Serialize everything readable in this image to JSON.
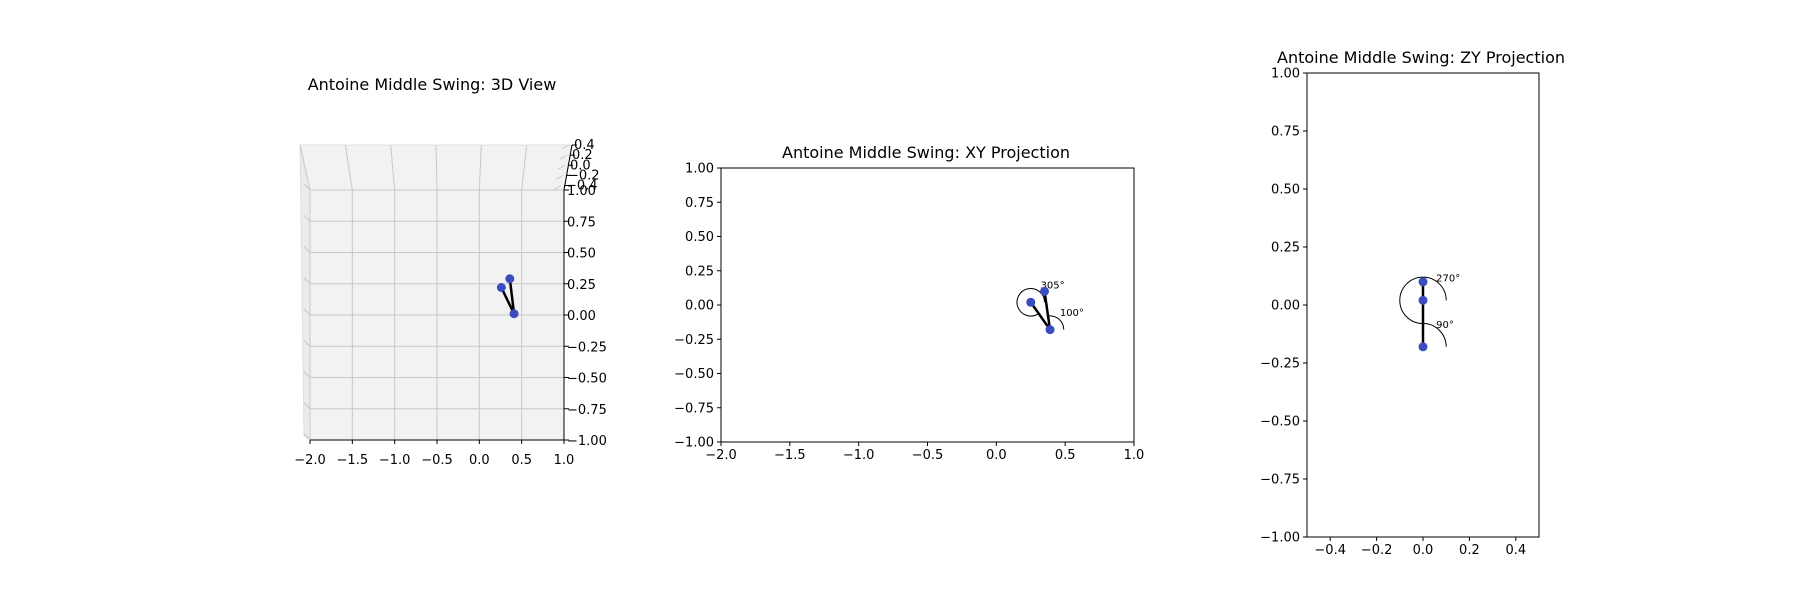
{
  "chart_data": [
    {
      "type": "scatter",
      "view": "3d",
      "title": "Antoine Middle Swing: 3D View",
      "xlim": [
        -2.0,
        1.0
      ],
      "ylim": [
        -1.0,
        1.0
      ],
      "zlim": [
        -0.4,
        0.4
      ],
      "x_ticks": [
        "−2.0",
        "−1.5",
        "−1.0",
        "−0.5",
        "0.0",
        "0.5",
        "1.0"
      ],
      "y_ticks": [
        "1.00",
        "0.75",
        "0.50",
        "0.25",
        "0.00",
        "−0.25",
        "−0.50",
        "−0.75",
        "−1.00"
      ],
      "z_ticks": [
        "0.4",
        "0.2",
        "0.0",
        "−0.2",
        "−0.4"
      ],
      "grid": true,
      "points": [
        {
          "x": 0.36,
          "y": 0.29
        },
        {
          "x": 0.26,
          "y": 0.22
        },
        {
          "x": 0.41,
          "y": 0.01
        }
      ],
      "segments": [
        [
          0,
          2
        ],
        [
          1,
          2
        ]
      ],
      "colors": {
        "point": "#3b4cc0",
        "line": "#000000",
        "pane": "#f2f2f2",
        "grid": "#c8c8c8"
      }
    },
    {
      "type": "scatter",
      "view": "xy",
      "title": "Antoine Middle Swing: XY Projection",
      "xlim": [
        -2.0,
        1.0
      ],
      "ylim": [
        -1.0,
        1.0
      ],
      "x_ticks": [
        "−2.0",
        "−1.5",
        "−1.0",
        "−0.5",
        "0.0",
        "0.5",
        "1.0"
      ],
      "y_ticks": [
        "1.00",
        "0.75",
        "0.50",
        "0.25",
        "0.00",
        "−0.25",
        "−0.50",
        "−0.75",
        "−1.00"
      ],
      "grid": false,
      "points": [
        {
          "x": 0.25,
          "y": 0.02
        },
        {
          "x": 0.35,
          "y": 0.1
        },
        {
          "x": 0.39,
          "y": -0.18
        }
      ],
      "segments": [
        [
          0,
          2
        ],
        [
          1,
          2
        ]
      ],
      "angles": [
        {
          "label": "305°",
          "value": 305,
          "center": 0,
          "radius": 0.1
        },
        {
          "label": "100°",
          "value": 100,
          "center": 2,
          "radius": 0.1
        }
      ],
      "colors": {
        "point": "#3b4cc0",
        "line": "#000000"
      }
    },
    {
      "type": "scatter",
      "view": "zy",
      "title": "Antoine Middle Swing: ZY Projection",
      "xlim": [
        -0.5,
        0.5
      ],
      "ylim": [
        -1.0,
        1.0
      ],
      "x_ticks": [
        "−0.4",
        "−0.2",
        "0.0",
        "0.2",
        "0.4"
      ],
      "y_ticks": [
        "1.00",
        "0.75",
        "0.50",
        "0.25",
        "0.00",
        "−0.25",
        "−0.50",
        "−0.75",
        "−1.00"
      ],
      "grid": false,
      "points": [
        {
          "x": 0.0,
          "y": 0.1
        },
        {
          "x": 0.0,
          "y": 0.02
        },
        {
          "x": 0.0,
          "y": -0.18
        }
      ],
      "segments": [
        [
          0,
          2
        ]
      ],
      "angles": [
        {
          "label": "270°",
          "value": 270,
          "center": 1,
          "radius": 0.1
        },
        {
          "label": "90°",
          "value": 90,
          "center": 2,
          "radius": 0.1
        }
      ],
      "colors": {
        "point": "#3b4cc0",
        "line": "#000000"
      }
    }
  ]
}
